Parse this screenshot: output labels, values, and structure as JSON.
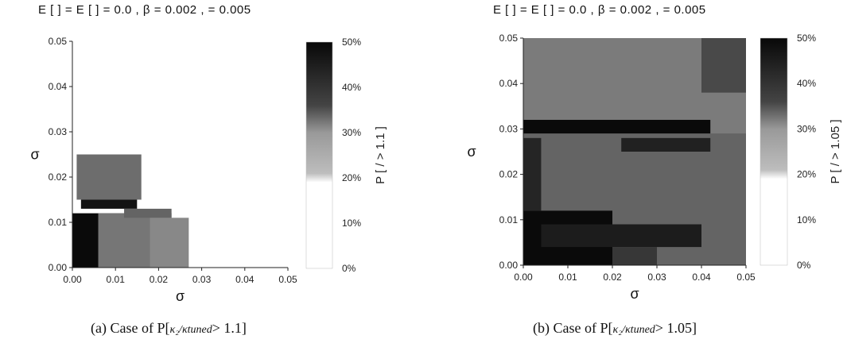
{
  "chart_data": [
    {
      "type": "heatmap",
      "title": "E [ ] = E [ ] = 0.0 , β = 0.002 , = 0.005",
      "xlabel": "σ",
      "ylabel": "σ",
      "colorbar_label": "P [ / > 1.1 ]",
      "xlim": [
        0,
        0.05
      ],
      "ylim": [
        0,
        0.05
      ],
      "xticks": [
        "0.00",
        "0.01",
        "0.02",
        "0.03",
        "0.04",
        "0.05"
      ],
      "yticks": [
        "0.00",
        "0.01",
        "0.02",
        "0.03",
        "0.04",
        "0.05"
      ],
      "colorbar_range": [
        0,
        0.5
      ],
      "colorbar_ticks": [
        "0%",
        "10%",
        "20%",
        "30%",
        "40%",
        "50%"
      ],
      "caption_prefix": "(a) Case of P[",
      "caption_ratio": "κ₂/κtuned",
      "caption_suffix": "> 1.1]",
      "regions": [
        {
          "x0": 0.0,
          "x1": 0.0,
          "y0": 0.0,
          "y1": 0.0,
          "level": 0.0
        },
        {
          "x0": 0.0,
          "x1": 0.013,
          "y0": 0.0,
          "y1": 0.012,
          "level": 0.5
        },
        {
          "x0": 0.0,
          "x1": 0.008,
          "y0": 0.0,
          "y1": 0.006,
          "level": 0.5
        },
        {
          "x0": 0.002,
          "x1": 0.015,
          "y0": 0.013,
          "y1": 0.015,
          "level": 0.48
        },
        {
          "x0": 0.001,
          "x1": 0.016,
          "y0": 0.015,
          "y1": 0.025,
          "level": 0.28
        },
        {
          "x0": 0.006,
          "x1": 0.023,
          "y0": 0.0,
          "y1": 0.012,
          "level": 0.26
        },
        {
          "x0": 0.012,
          "x1": 0.023,
          "y0": 0.011,
          "y1": 0.013,
          "level": 0.3
        },
        {
          "x0": 0.018,
          "x1": 0.027,
          "y0": 0.0,
          "y1": 0.011,
          "level": 0.22
        }
      ]
    },
    {
      "type": "heatmap",
      "title": "E [ ] = E [ ] = 0.0 , β = 0.002 , = 0.005",
      "xlabel": "σ",
      "ylabel": "σ",
      "colorbar_label": "P [ / > 1.05 ]",
      "xlim": [
        0,
        0.05
      ],
      "ylim": [
        0,
        0.05
      ],
      "xticks": [
        "0.00",
        "0.01",
        "0.02",
        "0.03",
        "0.04",
        "0.05"
      ],
      "yticks": [
        "0.00",
        "0.01",
        "0.02",
        "0.03",
        "0.04",
        "0.05"
      ],
      "colorbar_range": [
        0,
        0.5
      ],
      "colorbar_ticks": [
        "0%",
        "10%",
        "20%",
        "30%",
        "40%",
        "50%"
      ],
      "caption_prefix": "(b) Case of P[",
      "caption_ratio": "κ₂/κtuned",
      "caption_suffix": "> 1.05]",
      "regions": [
        {
          "x0": 0.0,
          "x1": 0.05,
          "y0": 0.0,
          "y1": 0.05,
          "level": 0.3
        },
        {
          "x0": 0.0,
          "x1": 0.05,
          "y0": 0.029,
          "y1": 0.05,
          "level": 0.25
        },
        {
          "x0": 0.04,
          "x1": 0.05,
          "y0": 0.038,
          "y1": 0.05,
          "level": 0.36
        },
        {
          "x0": 0.0,
          "x1": 0.042,
          "y0": 0.029,
          "y1": 0.032,
          "level": 0.5
        },
        {
          "x0": 0.022,
          "x1": 0.042,
          "y0": 0.025,
          "y1": 0.028,
          "level": 0.45
        },
        {
          "x0": 0.0,
          "x1": 0.02,
          "y0": 0.0,
          "y1": 0.012,
          "level": 0.5
        },
        {
          "x0": 0.004,
          "x1": 0.04,
          "y0": 0.004,
          "y1": 0.009,
          "level": 0.46
        },
        {
          "x0": 0.02,
          "x1": 0.03,
          "y0": 0.0,
          "y1": 0.004,
          "level": 0.4
        },
        {
          "x0": 0.0,
          "x1": 0.004,
          "y0": 0.012,
          "y1": 0.028,
          "level": 0.44
        }
      ]
    }
  ]
}
